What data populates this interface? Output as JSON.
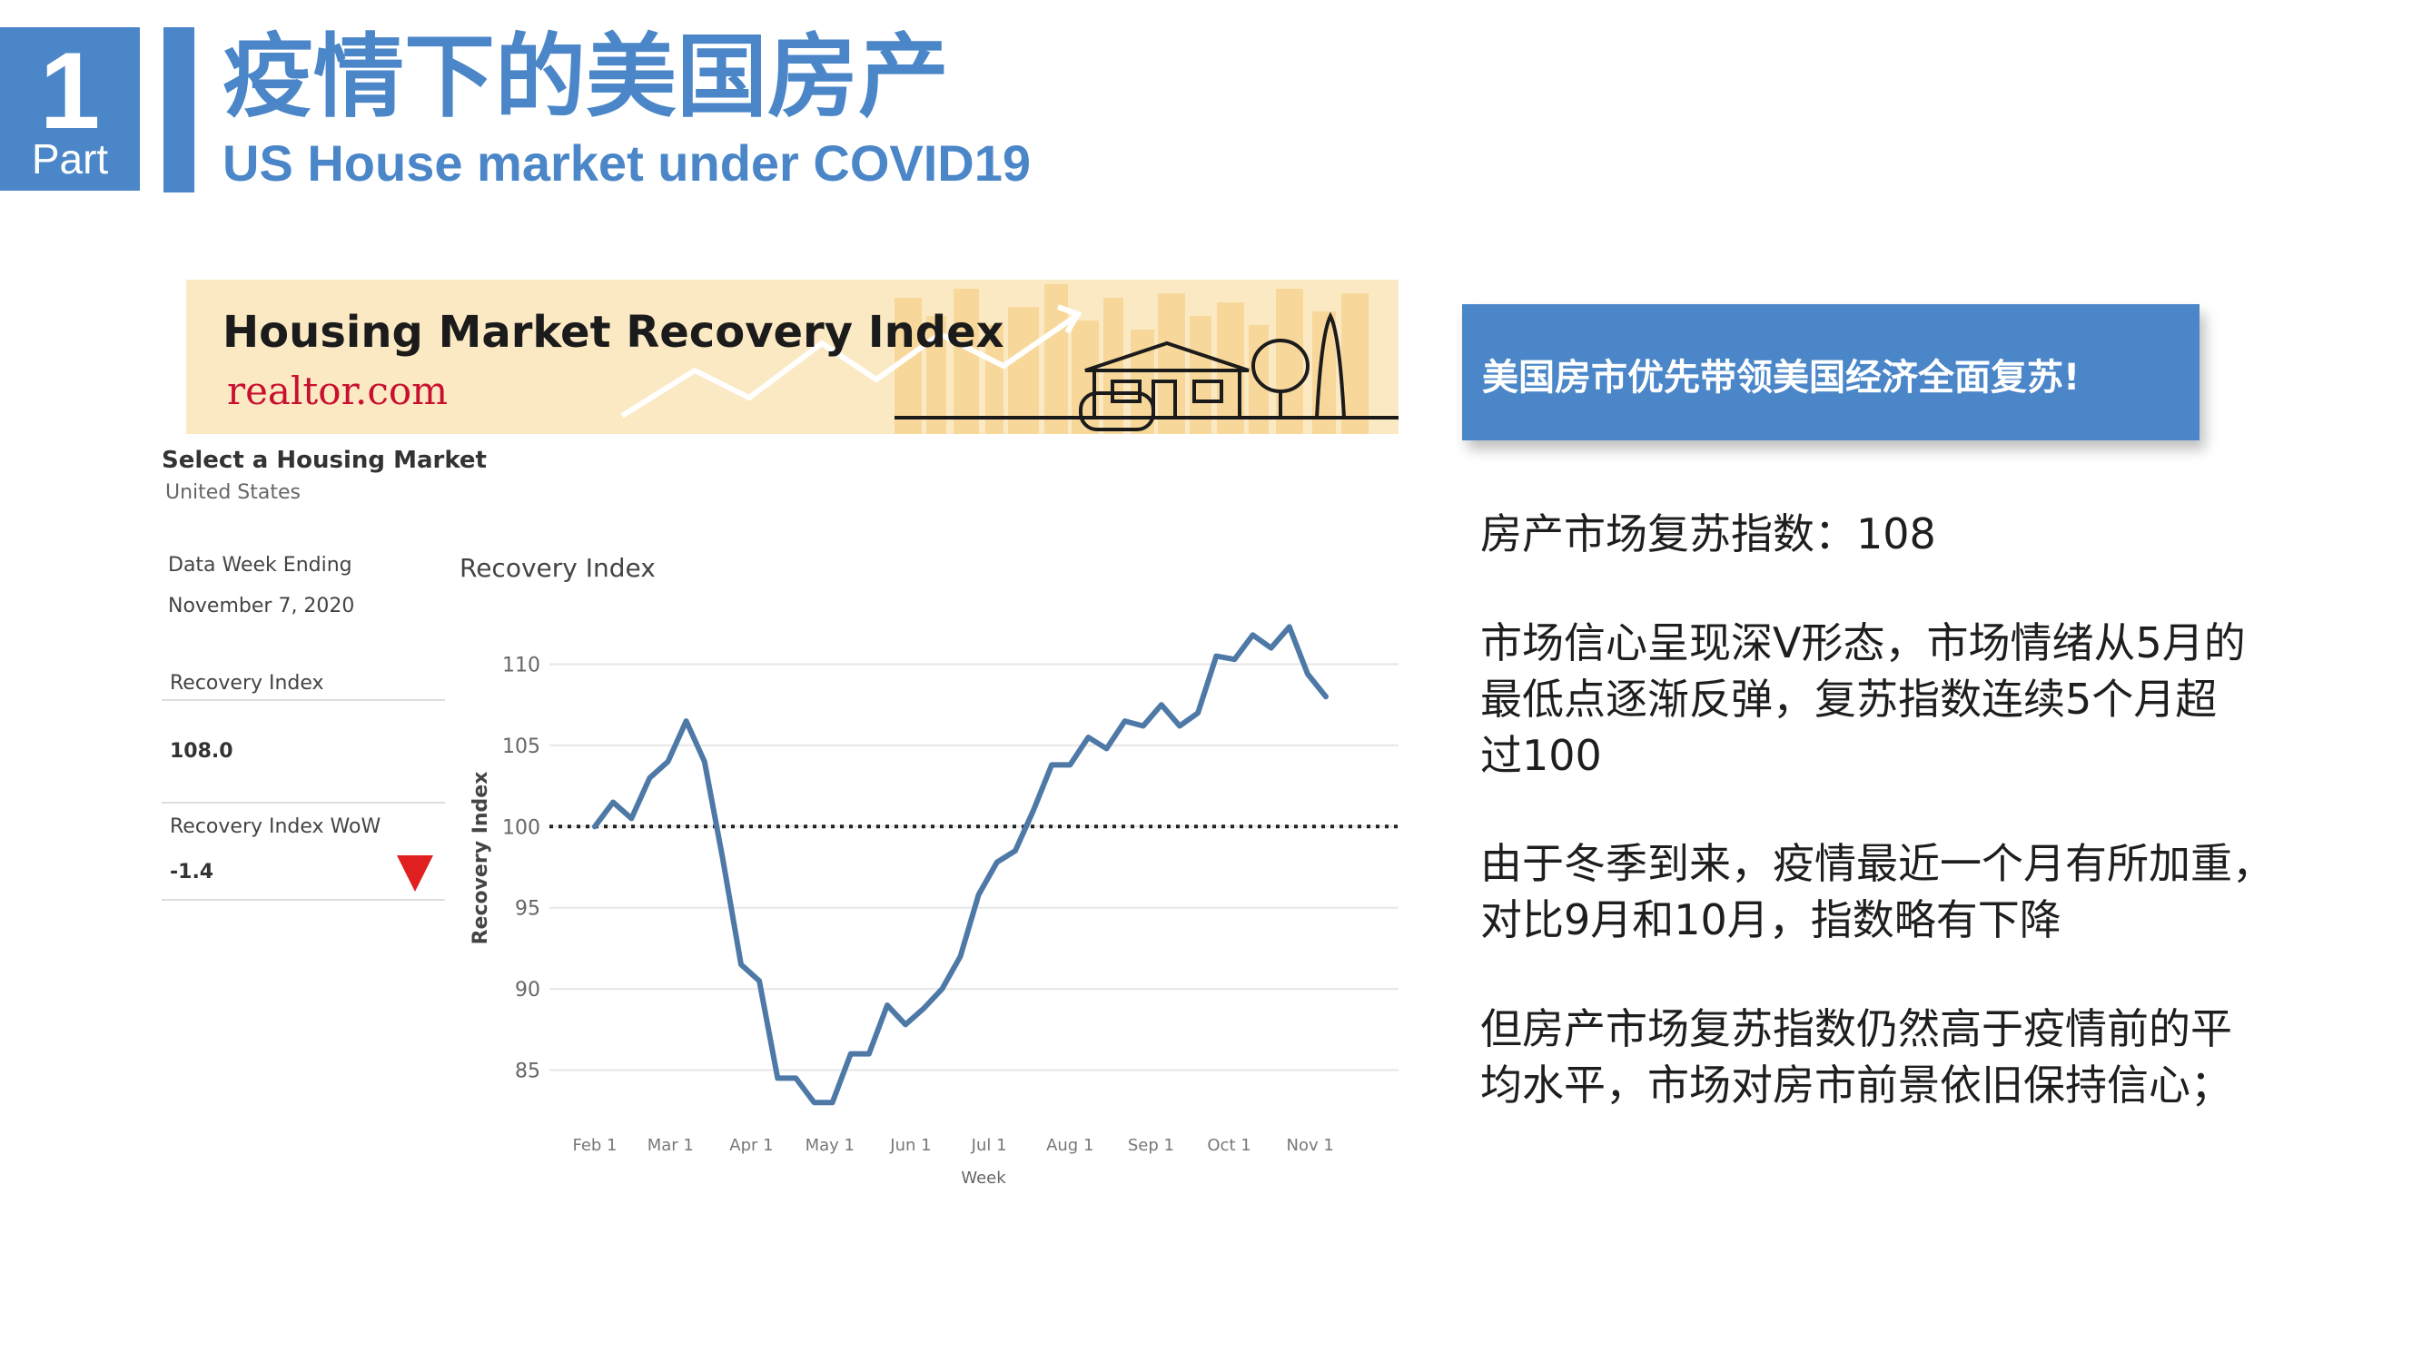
{
  "header": {
    "part_number": "1",
    "part_label": "Part",
    "title_zh": "疫情下的美国房产",
    "title_en": "US House market under COVID19"
  },
  "banner": {
    "title": "Housing Market Recovery Index",
    "logo": "realtor.com"
  },
  "panel": {
    "select_label": "Select a Housing Market",
    "select_value": "United States",
    "data_week_label": "Data Week Ending",
    "data_week_value": "November 7, 2020",
    "recovery_index_label": "Recovery Index",
    "recovery_index_value": "108.0",
    "wow_label": "Recovery Index WoW",
    "wow_value": "-1.4"
  },
  "colors": {
    "accent": "#4a86c8",
    "line": "#4e79a7",
    "down": "#e02020",
    "banner_bg": "#fbe9c4"
  },
  "chart_data": {
    "type": "line",
    "title": "Recovery Index",
    "xlabel": "Week",
    "ylabel": "Recovery Index",
    "ylim": [
      81,
      114
    ],
    "yticks": [
      85,
      90,
      95,
      100,
      105,
      110
    ],
    "grid": true,
    "reference_line": 100,
    "x_tick_labels": [
      "Feb 1",
      "Mar 1",
      "Apr 1",
      "May 1",
      "Jun 1",
      "Jul 1",
      "Aug 1",
      "Sep 1",
      "Oct 1",
      "Nov 1"
    ],
    "x_tick_weeks": [
      0,
      4.14,
      8.57,
      12.86,
      17.29,
      21.57,
      26,
      30.43,
      34.71,
      39.14
    ],
    "series": [
      {
        "values": [
          100.0,
          101.5,
          100.5,
          103.0,
          104.0,
          106.5,
          104.0,
          98.0,
          91.5,
          90.5,
          84.5,
          84.5,
          83.0,
          83.0,
          86.0,
          86.0,
          89.0,
          87.8,
          88.8,
          90.0,
          92.0,
          95.8,
          97.8,
          98.5,
          101.0,
          103.8,
          103.8,
          105.5,
          104.8,
          106.5,
          106.2,
          107.5,
          106.2,
          107.0,
          110.5,
          110.3,
          111.8,
          111.0,
          112.3,
          109.4,
          108.0
        ]
      }
    ]
  },
  "right": {
    "callout": "美国房市优先带领美国经济全面复苏!",
    "p1": "房产市场复苏指数：108",
    "p2_l1": "市场信心呈现深V形态，市场情绪从5月的",
    "p2_l2": "最低点逐渐反弹，复苏指数连续5个月超",
    "p2_l3": "过100",
    "p3_l1": "由于冬季到来，疫情最近一个月有所加重，",
    "p3_l2": "对比9月和10月，指数略有下降",
    "p4_l1": "但房产市场复苏指数仍然高于疫情前的平",
    "p4_l2": "均水平，市场对房市前景依旧保持信心；"
  }
}
